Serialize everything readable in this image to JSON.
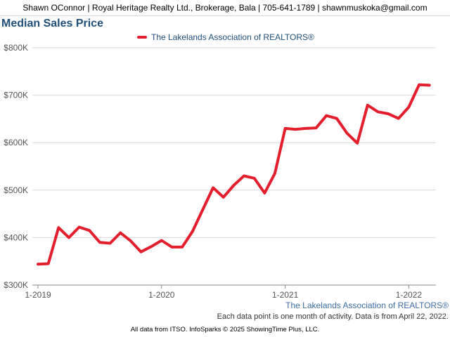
{
  "header": {
    "contact": "Shawn OConnor | Royal Heritage Realty Ltd., Brokerage, Bala | 705-641-1789 | shawnmuskoka@gmail.com"
  },
  "colors": {
    "series": "#e31e2d",
    "title": "#1f4e79",
    "grid": "#d9d9d9"
  },
  "chart_data": {
    "type": "line",
    "title": "Median Sales Price",
    "ylim": [
      300000,
      800000
    ],
    "y_ticks": [
      300000,
      400000,
      500000,
      600000,
      700000,
      800000
    ],
    "y_tick_labels": [
      "$300K",
      "$400K",
      "$500K",
      "$600K",
      "$700K",
      "$800K"
    ],
    "x_tick_labels": [
      "1-2019",
      "1-2020",
      "1-2021",
      "1-2022"
    ],
    "x_tick_positions": [
      0,
      12,
      24,
      36
    ],
    "grid": true,
    "legend_position": "top",
    "series": [
      {
        "name": "The Lakelands Association of REALTORS®",
        "x": [
          "2019-01",
          "2019-02",
          "2019-03",
          "2019-04",
          "2019-05",
          "2019-06",
          "2019-07",
          "2019-08",
          "2019-09",
          "2019-10",
          "2019-11",
          "2019-12",
          "2020-01",
          "2020-02",
          "2020-03",
          "2020-04",
          "2020-05",
          "2020-06",
          "2020-07",
          "2020-08",
          "2020-09",
          "2020-10",
          "2020-11",
          "2020-12",
          "2021-01",
          "2021-02",
          "2021-03",
          "2021-04",
          "2021-05",
          "2021-06",
          "2021-07",
          "2021-08",
          "2021-09",
          "2021-10",
          "2021-11",
          "2021-12",
          "2022-01",
          "2022-02",
          "2022-03"
        ],
        "values": [
          344000,
          345000,
          421000,
          400000,
          422000,
          415000,
          390000,
          388000,
          410000,
          393000,
          370000,
          381000,
          394000,
          380000,
          380000,
          413000,
          459000,
          505000,
          485000,
          510000,
          530000,
          525000,
          494000,
          535000,
          630000,
          628000,
          630000,
          631000,
          657000,
          651000,
          620000,
          599000,
          679000,
          665000,
          661000,
          651000,
          675000,
          722000,
          721000
        ]
      }
    ]
  },
  "watermark": "The Lakelands Association of REALTORS®",
  "note": "Each data point is one month of activity. Data is from April 22, 2022.",
  "footer": "All data from ITSO. InfoSparks © 2025 ShowingTime Plus, LLC."
}
